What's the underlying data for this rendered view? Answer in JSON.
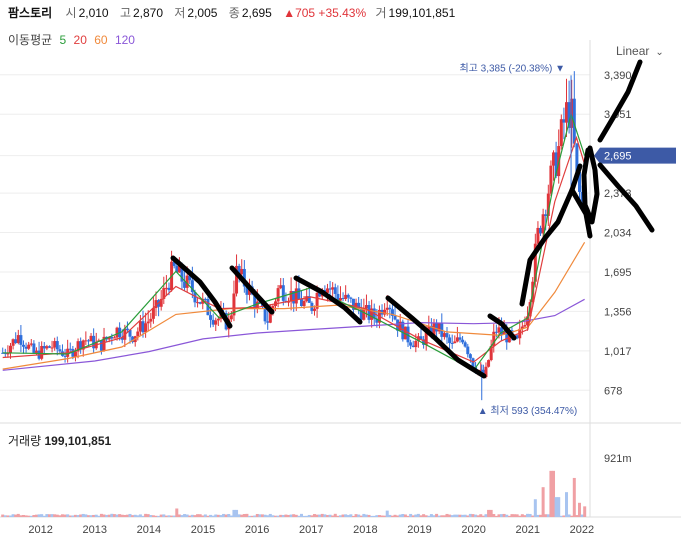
{
  "header": {
    "name": "팜스토리",
    "open_label": "시",
    "open": "2,010",
    "high_label": "고",
    "high": "2,870",
    "low_label": "저",
    "low": "2,005",
    "close_label": "종",
    "close": "2,695",
    "change": "▲705 +35.43%",
    "volume_label": "거",
    "volume": "199,101,851"
  },
  "moving_average": {
    "label": "이동평균",
    "periods": [
      {
        "value": "5",
        "color": "#2a9d3a"
      },
      {
        "value": "20",
        "color": "#e03e3e"
      },
      {
        "value": "60",
        "color": "#f08a3c"
      },
      {
        "value": "120",
        "color": "#8a57d8"
      }
    ]
  },
  "scale_mode": "Linear",
  "volume_panel": {
    "label": "거래량",
    "value": "199,101,851",
    "axis_max": "921m"
  },
  "colors": {
    "up": "#e0343a",
    "down": "#2f6fdc",
    "price_tag": "#3d5aa6",
    "vol_up": "#f0a0a4",
    "vol_down": "#a8c4f0"
  },
  "chart_data": {
    "type": "candlestick",
    "x_tick_labels": [
      "2012",
      "2013",
      "2014",
      "2015",
      "2016",
      "2017",
      "2018",
      "2019",
      "2020",
      "2021",
      "2022"
    ],
    "y_tick_values": [
      678,
      1017,
      1356,
      1695,
      2034,
      2373,
      2695,
      3051,
      3390
    ],
    "y_tick_labels": [
      "678",
      "1,017",
      "1,356",
      "1,695",
      "2,034",
      "2,373",
      "",
      "3,051",
      "3,390"
    ],
    "ylim": [
      560,
      3560
    ],
    "current_price": "2,695",
    "high_annotation": "최고 3,385 (-20.38%)",
    "low_annotation": "최저 593 (354.47%)",
    "high_point": {
      "year": 2021.8,
      "value": 3385
    },
    "low_point": {
      "year": 2020.15,
      "value": 593
    },
    "price_path": [
      [
        2011.3,
        1000
      ],
      [
        2011.6,
        1150
      ],
      [
        2011.9,
        980
      ],
      [
        2012.2,
        1060
      ],
      [
        2012.5,
        980
      ],
      [
        2012.8,
        1120
      ],
      [
        2013.1,
        1060
      ],
      [
        2013.4,
        1200
      ],
      [
        2013.7,
        1150
      ],
      [
        2014.0,
        1280
      ],
      [
        2014.2,
        1420
      ],
      [
        2014.45,
        1720
      ],
      [
        2014.6,
        1640
      ],
      [
        2014.8,
        1540
      ],
      [
        2015.0,
        1420
      ],
      [
        2015.2,
        1310
      ],
      [
        2015.5,
        1250
      ],
      [
        2015.6,
        1700
      ],
      [
        2015.8,
        1580
      ],
      [
        2016.0,
        1400
      ],
      [
        2016.2,
        1280
      ],
      [
        2016.4,
        1560
      ],
      [
        2016.6,
        1510
      ],
      [
        2016.8,
        1440
      ],
      [
        2017.0,
        1390
      ],
      [
        2017.2,
        1610
      ],
      [
        2017.5,
        1490
      ],
      [
        2017.8,
        1400
      ],
      [
        2018.0,
        1340
      ],
      [
        2018.2,
        1300
      ],
      [
        2018.4,
        1480
      ],
      [
        2018.6,
        1240
      ],
      [
        2018.8,
        1120
      ],
      [
        2019.0,
        1080
      ],
      [
        2019.3,
        1230
      ],
      [
        2019.6,
        1050
      ],
      [
        2019.8,
        1140
      ],
      [
        2020.0,
        900
      ],
      [
        2020.2,
        780
      ],
      [
        2020.4,
        1200
      ],
      [
        2020.6,
        1150
      ],
      [
        2020.8,
        1080
      ],
      [
        2021.0,
        1380
      ],
      [
        2021.2,
        2050
      ],
      [
        2021.4,
        2450
      ],
      [
        2021.55,
        2700
      ],
      [
        2021.7,
        3050
      ],
      [
        2021.8,
        3100
      ],
      [
        2021.9,
        2500
      ],
      [
        2022.0,
        2250
      ],
      [
        2022.05,
        2695
      ]
    ],
    "ma_series": [
      {
        "name": "120",
        "color": "#8a57d8",
        "points": [
          [
            2011.3,
            850
          ],
          [
            2013,
            930
          ],
          [
            2014,
            1010
          ],
          [
            2015,
            1120
          ],
          [
            2016,
            1170
          ],
          [
            2017,
            1200
          ],
          [
            2018,
            1230
          ],
          [
            2019,
            1260
          ],
          [
            2020,
            1250
          ],
          [
            2020.8,
            1260
          ],
          [
            2021.5,
            1320
          ],
          [
            2022.05,
            1460
          ]
        ]
      },
      {
        "name": "60",
        "color": "#f08a3c",
        "points": [
          [
            2011.3,
            860
          ],
          [
            2012.5,
            950
          ],
          [
            2013.5,
            1050
          ],
          [
            2014.5,
            1330
          ],
          [
            2015.5,
            1380
          ],
          [
            2016.5,
            1380
          ],
          [
            2017.5,
            1410
          ],
          [
            2018.5,
            1330
          ],
          [
            2019.5,
            1180
          ],
          [
            2020.5,
            1150
          ],
          [
            2021,
            1220
          ],
          [
            2021.5,
            1520
          ],
          [
            2022.05,
            1950
          ]
        ]
      },
      {
        "name": "20",
        "color": "#e03e3e",
        "points": [
          [
            2011.3,
            960
          ],
          [
            2012.5,
            1000
          ],
          [
            2013.5,
            1130
          ],
          [
            2014.5,
            1570
          ],
          [
            2015.3,
            1380
          ],
          [
            2016,
            1390
          ],
          [
            2017,
            1480
          ],
          [
            2018,
            1380
          ],
          [
            2019,
            1120
          ],
          [
            2020,
            920
          ],
          [
            2020.5,
            1100
          ],
          [
            2021,
            1200
          ],
          [
            2021.5,
            2300
          ],
          [
            2021.9,
            2850
          ],
          [
            2022.05,
            2620
          ]
        ]
      },
      {
        "name": "5",
        "color": "#2a9d3a",
        "points": [
          [
            2011.3,
            1000
          ],
          [
            2012.5,
            990
          ],
          [
            2013.5,
            1180
          ],
          [
            2014.5,
            1700
          ],
          [
            2015.3,
            1300
          ],
          [
            2016,
            1420
          ],
          [
            2017,
            1560
          ],
          [
            2018,
            1340
          ],
          [
            2019,
            1100
          ],
          [
            2020,
            850
          ],
          [
            2020.5,
            1170
          ],
          [
            2021,
            1300
          ],
          [
            2021.5,
            2500
          ],
          [
            2021.8,
            3050
          ],
          [
            2022.05,
            2695
          ]
        ]
      }
    ],
    "volume_peaks": [
      [
        2014.5,
        0.12
      ],
      [
        2015.6,
        0.1
      ],
      [
        2018.4,
        0.09
      ],
      [
        2020.3,
        0.1
      ],
      [
        2021.15,
        0.25
      ],
      [
        2021.3,
        0.42
      ],
      [
        2021.45,
        0.65
      ],
      [
        2021.55,
        0.28
      ],
      [
        2021.7,
        0.35
      ],
      [
        2021.85,
        0.55
      ],
      [
        2021.95,
        0.2
      ],
      [
        2022.05,
        0.15
      ]
    ]
  }
}
